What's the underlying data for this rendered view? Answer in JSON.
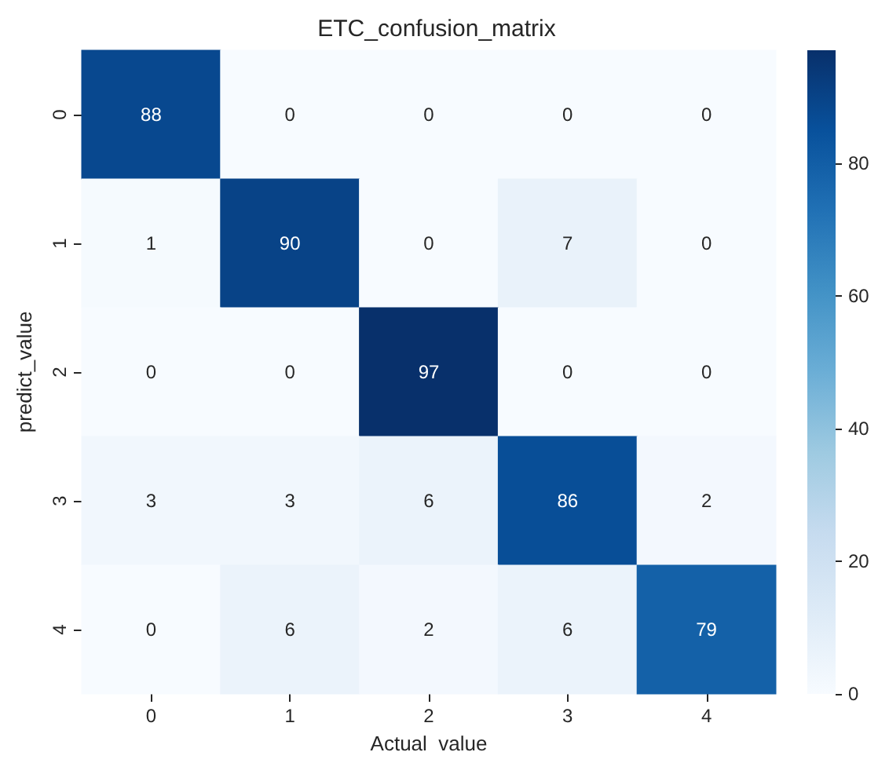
{
  "chart_data": {
    "type": "heatmap",
    "title": "ETC_confusion_matrix",
    "xlabel": "Actual  value",
    "ylabel": "predict_value",
    "categories": [
      "0",
      "1",
      "2",
      "3",
      "4"
    ],
    "y_categories": [
      "0",
      "1",
      "2",
      "3",
      "4"
    ],
    "cells": [
      [
        88,
        0,
        0,
        0,
        0
      ],
      [
        1,
        90,
        0,
        7,
        0
      ],
      [
        0,
        0,
        97,
        0,
        0
      ],
      [
        3,
        3,
        6,
        86,
        2
      ],
      [
        0,
        6,
        2,
        6,
        79
      ]
    ],
    "clim": [
      0,
      97
    ],
    "cticks": [
      0,
      20,
      40,
      60,
      80
    ],
    "data_labels": true
  }
}
